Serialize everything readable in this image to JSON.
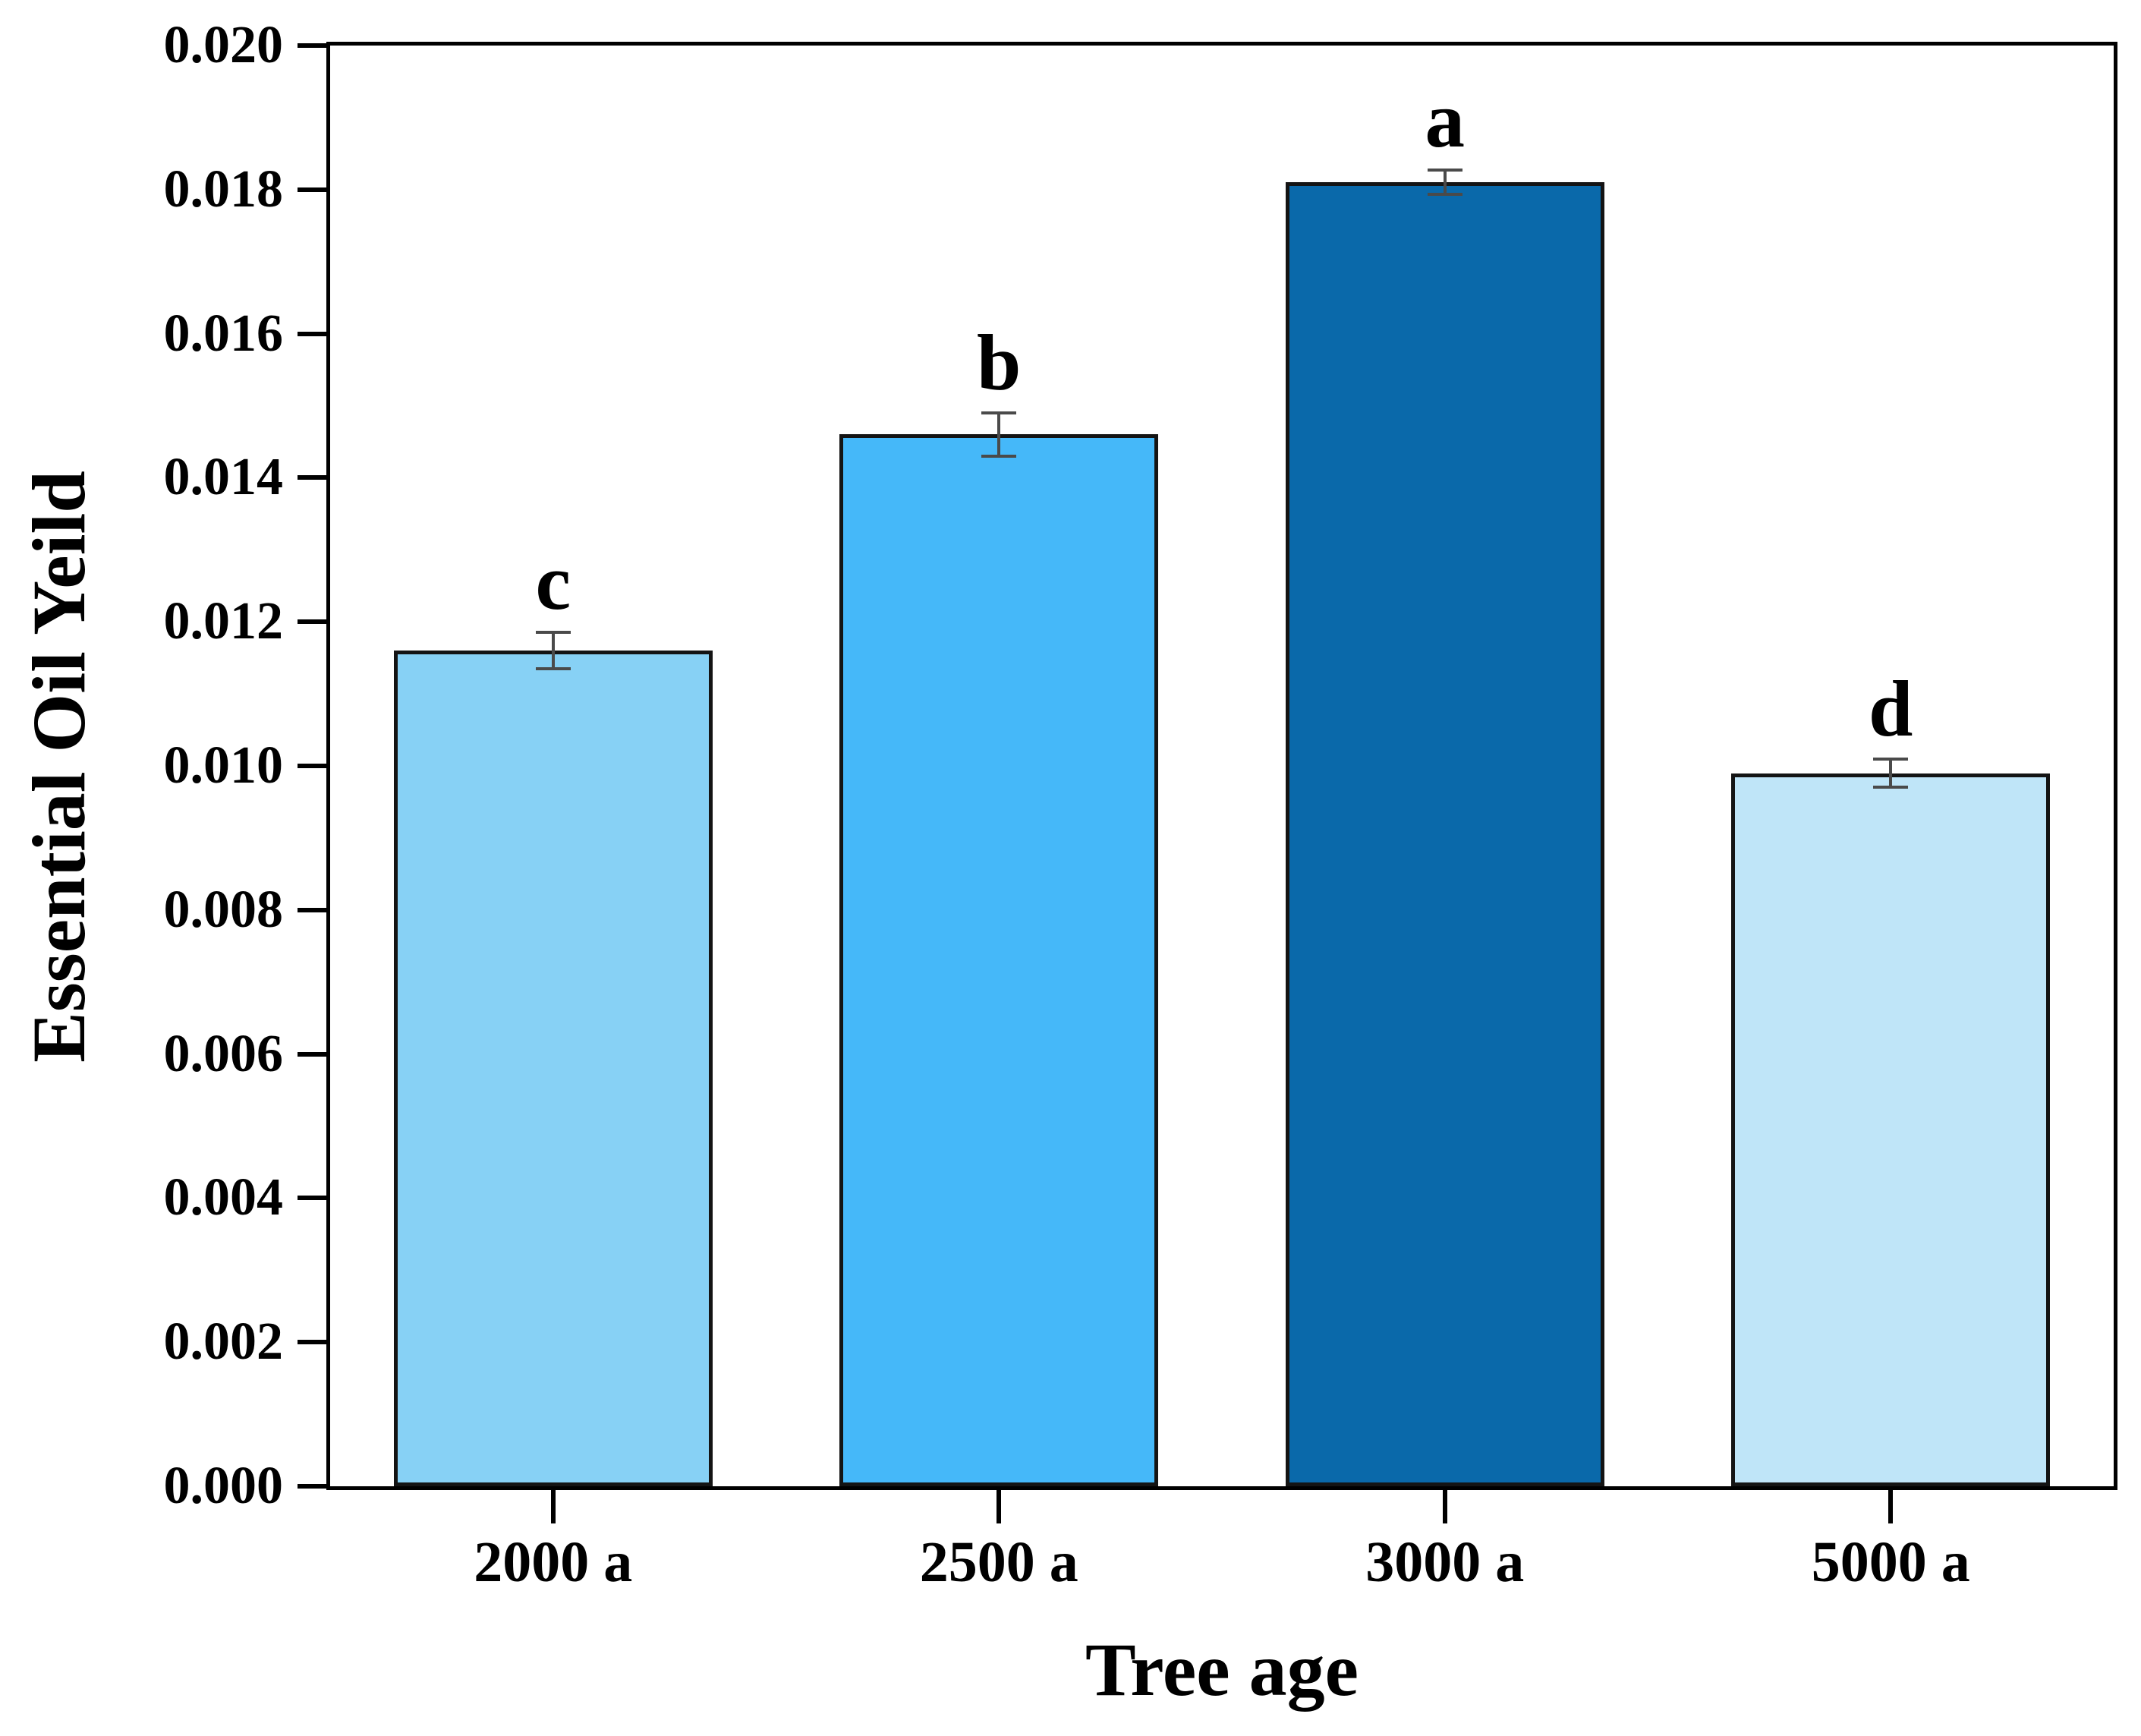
{
  "chart_data": {
    "type": "bar",
    "title": "",
    "xlabel": "Tree age",
    "ylabel": "Essential Oil Yeild",
    "categories": [
      "2000 a",
      "2500 a",
      "3000 a",
      "5000 a"
    ],
    "values": [
      0.0116,
      0.0146,
      0.0181,
      0.0099
    ],
    "errors": [
      0.00025,
      0.0003,
      0.00017,
      0.0002
    ],
    "sig_letters": [
      "c",
      "b",
      "a",
      "d"
    ],
    "bar_colors": [
      "#87D1F5",
      "#45B8F9",
      "#0A69AA",
      "#BFE5F8"
    ],
    "bar_edge_color": "#141414",
    "error_bar_color": "#4a4a4a",
    "axis_color": "#000000",
    "background_color": "#FFFFFF",
    "ylim": [
      0,
      0.02
    ],
    "ytick_step": 0.002,
    "ytick_labels": [
      "0.000",
      "0.002",
      "0.004",
      "0.006",
      "0.008",
      "0.010",
      "0.012",
      "0.014",
      "0.016",
      "0.018",
      "0.020"
    ],
    "grid": false,
    "legend": null
  }
}
